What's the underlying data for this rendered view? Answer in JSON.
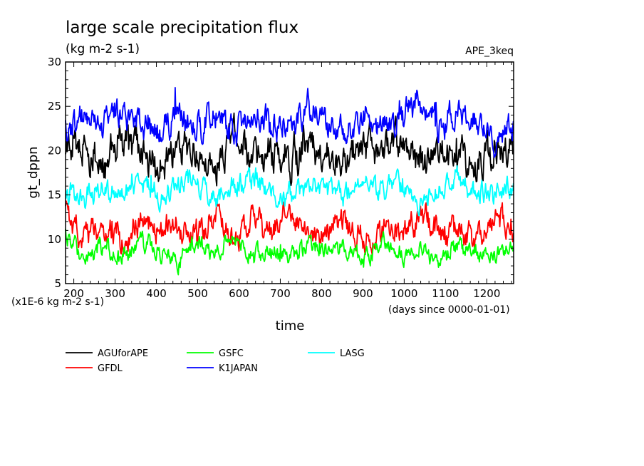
{
  "chart_data": {
    "type": "line",
    "title": "large scale precipitation flux",
    "subtitle": "(kg m-2 s-1)",
    "run_label": "APE_3keq",
    "xlabel": "time",
    "xunits": "(days since 0000-01-01)",
    "ylabel": "gt_dppn",
    "yunits": "(x1E-6 kg m-2 s-1)",
    "xlim": [
      180,
      1265
    ],
    "ylim": [
      5,
      30
    ],
    "xticks": [
      200,
      300,
      400,
      500,
      600,
      700,
      800,
      900,
      1000,
      1100,
      1200
    ],
    "yticks": [
      5,
      10,
      15,
      20,
      25,
      30
    ],
    "legend_placement": "bottom",
    "series": [
      {
        "name": "AGUforAPE",
        "color": "#000000",
        "mean": 19.5,
        "amplitude": 2.0,
        "values_sampled": [
          19.2,
          20.5,
          18.4,
          21.3,
          19.8,
          18.1,
          20.9,
          19.5,
          17.6,
          21.8,
          19.0,
          20.2,
          18.7,
          21.0,
          19.4,
          18.3,
          20.6,
          19.9,
          21.5,
          18.8,
          20.1,
          19.3,
          17.9,
          20.7,
          19.6
        ]
      },
      {
        "name": "GFDL",
        "color": "#ff0000",
        "mean": 11.0,
        "amplitude": 1.5,
        "values_sampled": [
          12.8,
          10.4,
          11.6,
          9.8,
          12.1,
          10.9,
          11.3,
          9.9,
          12.5,
          10.6,
          11.8,
          10.2,
          13.4,
          11.0,
          10.5,
          12.2,
          9.7,
          11.4,
          10.8,
          12.9,
          10.3,
          11.1,
          9.6,
          12.0,
          11.5
        ]
      },
      {
        "name": "GSFC",
        "color": "#00ff00",
        "mean": 8.8,
        "amplitude": 1.0,
        "values_sampled": [
          10.2,
          8.4,
          9.1,
          7.9,
          9.6,
          8.7,
          7.5,
          9.3,
          8.2,
          9.9,
          8.0,
          8.8,
          7.7,
          9.4,
          8.5,
          9.0,
          7.8,
          9.7,
          8.3,
          8.9,
          7.6,
          9.2,
          8.6,
          8.1,
          9.5
        ]
      },
      {
        "name": "K1JAPAN",
        "color": "#0000ff",
        "mean": 23.0,
        "amplitude": 1.6,
        "values_sampled": [
          21.8,
          23.9,
          22.6,
          24.8,
          23.1,
          21.9,
          24.2,
          22.8,
          23.6,
          21.7,
          24.5,
          23.0,
          22.4,
          25.1,
          23.3,
          22.1,
          24.0,
          22.9,
          23.7,
          26.0,
          22.5,
          24.6,
          23.2,
          21.6,
          22.7
        ]
      },
      {
        "name": "LASG",
        "color": "#00ffff",
        "mean": 15.8,
        "amplitude": 1.2,
        "values_sampled": [
          15.4,
          14.6,
          16.2,
          15.0,
          16.7,
          14.9,
          15.8,
          16.4,
          14.5,
          15.9,
          17.0,
          15.2,
          14.8,
          16.6,
          15.5,
          14.7,
          16.9,
          15.3,
          16.1,
          14.4,
          15.7,
          16.8,
          15.1,
          14.9,
          16.3
        ]
      }
    ]
  }
}
